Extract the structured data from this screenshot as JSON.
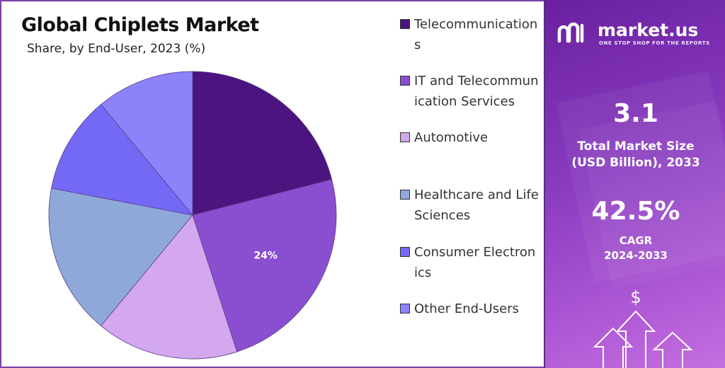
{
  "title": "Global Chiplets Market",
  "subtitle": "Share, by End-User, 2023 (%)",
  "colors": {
    "frame": "#7b3fa8",
    "panel_top": "#6a1fa0",
    "panel_bottom": "#c56ee0",
    "slice_label": "#ffffff"
  },
  "chart_data": {
    "type": "pie",
    "title": "Global Chiplets Market",
    "subtitle": "Share, by End-User, 2023 (%)",
    "legend_position": "right",
    "slices": [
      {
        "name": "Telecommunications",
        "value": 21,
        "color": "#4b147e",
        "label": ""
      },
      {
        "name": "IT and Telecommunication Services",
        "value": 24,
        "color": "#8a4fd0",
        "label": "24%"
      },
      {
        "name": "Automotive",
        "value": 16,
        "color": "#d3a8ef",
        "label": ""
      },
      {
        "name": "Healthcare and Life Sciences",
        "value": 17,
        "color": "#8fa8da",
        "label": ""
      },
      {
        "name": "Consumer Electronics",
        "value": 11,
        "color": "#7469f5",
        "label": ""
      },
      {
        "name": "Other End-Users",
        "value": 11,
        "color": "#8c83fa",
        "label": ""
      }
    ]
  },
  "legend": [
    {
      "label": "Telecommunications",
      "color": "#4b147e"
    },
    {
      "label": "IT and Telecommunication Services",
      "color": "#8a4fd0"
    },
    {
      "label": "Automotive",
      "color": "#d3a8ef"
    },
    {
      "label": "Healthcare and Life Sciences",
      "color": "#8fa8da"
    },
    {
      "label": "Consumer Electronics",
      "color": "#7469f5"
    },
    {
      "label": "Other End-Users",
      "color": "#8c83fa"
    }
  ],
  "brand": {
    "name": "market.us",
    "tagline": "ONE STOP SHOP FOR THE REPORTS"
  },
  "stats": {
    "market_size_value": "3.1",
    "market_size_label_1": "Total Market Size",
    "market_size_label_2": "(USD Billion), 2033",
    "cagr_value": "42.5%",
    "cagr_label_1": "CAGR",
    "cagr_label_2": "2024-2033"
  },
  "icons": {
    "brand_logo": "market-us-logo-icon",
    "dollar": "dollar-icon",
    "arrows": "growth-arrows-icon"
  }
}
